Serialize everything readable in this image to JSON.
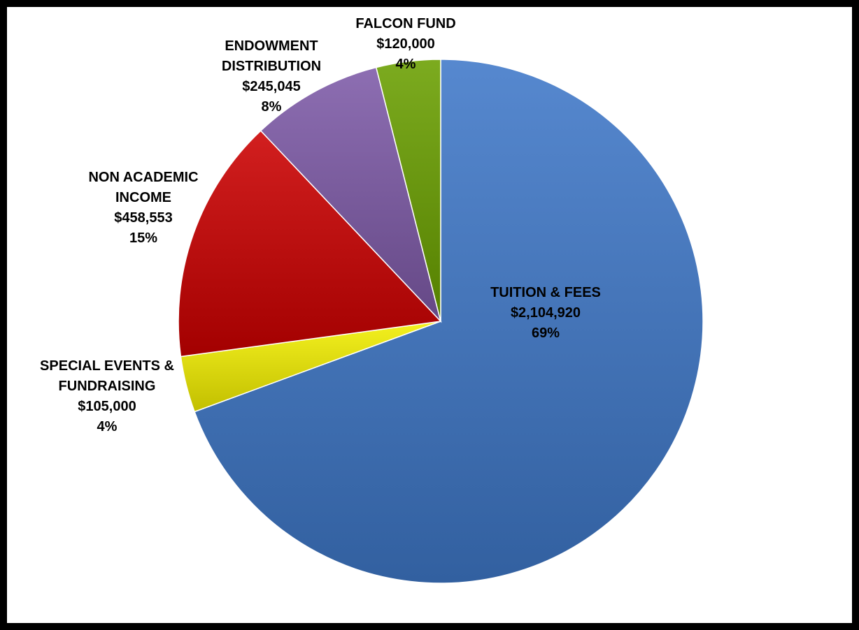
{
  "chart_data": {
    "type": "pie",
    "title": "",
    "slices": [
      {
        "name": "TUITION & FEES",
        "value": 2104920,
        "value_label": "$2,104,920",
        "percent_label": "69%",
        "color": "#3f78c8"
      },
      {
        "name": "SPECIAL EVENTS & FUNDRAISING",
        "value": 105000,
        "value_label": "$105,000",
        "percent_label": "4%",
        "color": "#f2ef00"
      },
      {
        "name": "NON ACADEMIC INCOME",
        "value": 458553,
        "value_label": "$458,553",
        "percent_label": "15%",
        "color": "#cc0000"
      },
      {
        "name": "ENDOWMENT DISTRIBUTION",
        "value": 245045,
        "value_label": "$245,045",
        "percent_label": "8%",
        "color": "#7e5aa8"
      },
      {
        "name": "FALCON FUND",
        "value": 120000,
        "value_label": "$120,000",
        "percent_label": "4%",
        "color": "#6aa000"
      }
    ],
    "start_angle_deg": 0,
    "direction": "clockwise",
    "legend": "none",
    "data_labels": "outside-name-value-percent"
  }
}
